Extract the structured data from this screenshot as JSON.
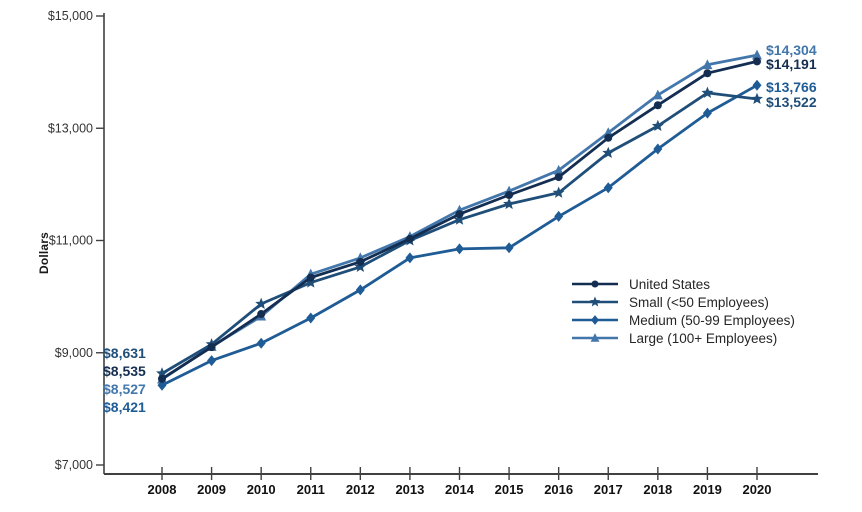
{
  "chart_data": {
    "type": "line",
    "title": "",
    "ylabel": "Dollars",
    "xlabel": "",
    "x": [
      2008,
      2009,
      2010,
      2011,
      2012,
      2013,
      2014,
      2015,
      2016,
      2017,
      2018,
      2019,
      2020
    ],
    "x_tick_labels": [
      "2008",
      "2009",
      "2010",
      "2011",
      "2012",
      "2013",
      "2014",
      "2015",
      "2016",
      "2017",
      "2018",
      "2019",
      "2020"
    ],
    "ylim": [
      7000,
      15000
    ],
    "y_ticks": [
      7000,
      9000,
      11000,
      13000,
      15000
    ],
    "y_tick_labels": [
      "$7,000",
      "$9,000",
      "$11,000",
      "$13,000",
      "$15,000"
    ],
    "grid": false,
    "legend_position": "inside-right-middle",
    "axis_color": "#404040",
    "tick_label_color": "#333333",
    "year_label_color": "#111111",
    "series": [
      {
        "name": "United States",
        "marker": "circle",
        "color": "#142E52",
        "values": [
          8535,
          9100,
          9690,
          10340,
          10620,
          11030,
          11470,
          11810,
          12130,
          12830,
          13410,
          13980,
          14191
        ],
        "start_label": "$8,535",
        "end_label": "$14,191"
      },
      {
        "name": "Small (<50 Employees)",
        "marker": "star",
        "color": "#1F4E79",
        "values": [
          8631,
          9150,
          9870,
          10250,
          10530,
          11000,
          11370,
          11650,
          11850,
          12560,
          13040,
          13630,
          13522
        ],
        "start_label": "$8,631",
        "end_label": "$13,522"
      },
      {
        "name": "Medium (50-99 Employees)",
        "marker": "diamond",
        "color": "#1F5C96",
        "values": [
          8421,
          8860,
          9170,
          9620,
          10120,
          10690,
          10850,
          10870,
          11430,
          11940,
          12630,
          13270,
          13766
        ],
        "start_label": "$8,421",
        "end_label": "$13,766"
      },
      {
        "name": "Large (100+ Employees)",
        "marker": "triangle",
        "color": "#4377AC",
        "values": [
          8527,
          9110,
          9650,
          10400,
          10690,
          11070,
          11540,
          11880,
          12250,
          12920,
          13590,
          14130,
          14304
        ],
        "start_label": "$8,527",
        "end_label": "$14,304"
      }
    ]
  }
}
